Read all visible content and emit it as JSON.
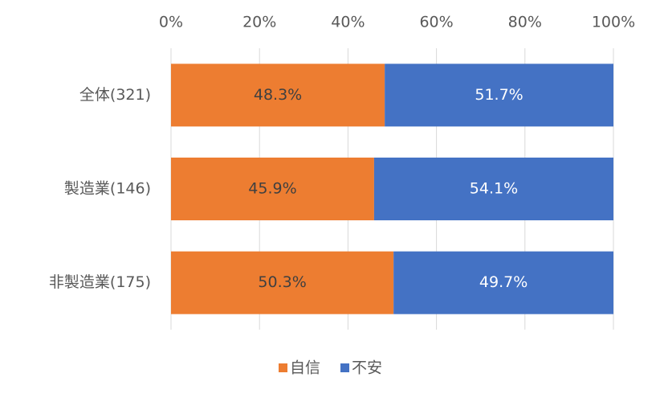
{
  "chart_data": {
    "type": "stacked_barh",
    "categories": [
      "全体(321)",
      "製造業(146)",
      "非製造業(175)"
    ],
    "series": [
      {
        "name": "自信",
        "color": "#ED7D31",
        "label_color": "#404040",
        "values": [
          48.3,
          45.9,
          50.3
        ],
        "value_labels": [
          "48.3%",
          "45.9%",
          "50.3%"
        ]
      },
      {
        "name": "不安",
        "color": "#4472C4",
        "label_color": "#ffffff",
        "values": [
          51.7,
          54.1,
          49.7
        ],
        "value_labels": [
          "51.7%",
          "54.1%",
          "49.7%"
        ]
      }
    ],
    "xlim": [
      0,
      100
    ],
    "xticks": [
      {
        "value": 0,
        "label": "0%"
      },
      {
        "value": 20,
        "label": "20%"
      },
      {
        "value": 40,
        "label": "40%"
      },
      {
        "value": 60,
        "label": "60%"
      },
      {
        "value": 80,
        "label": "80%"
      },
      {
        "value": 100,
        "label": "100%"
      }
    ],
    "grid": true,
    "legend": "bottom"
  }
}
